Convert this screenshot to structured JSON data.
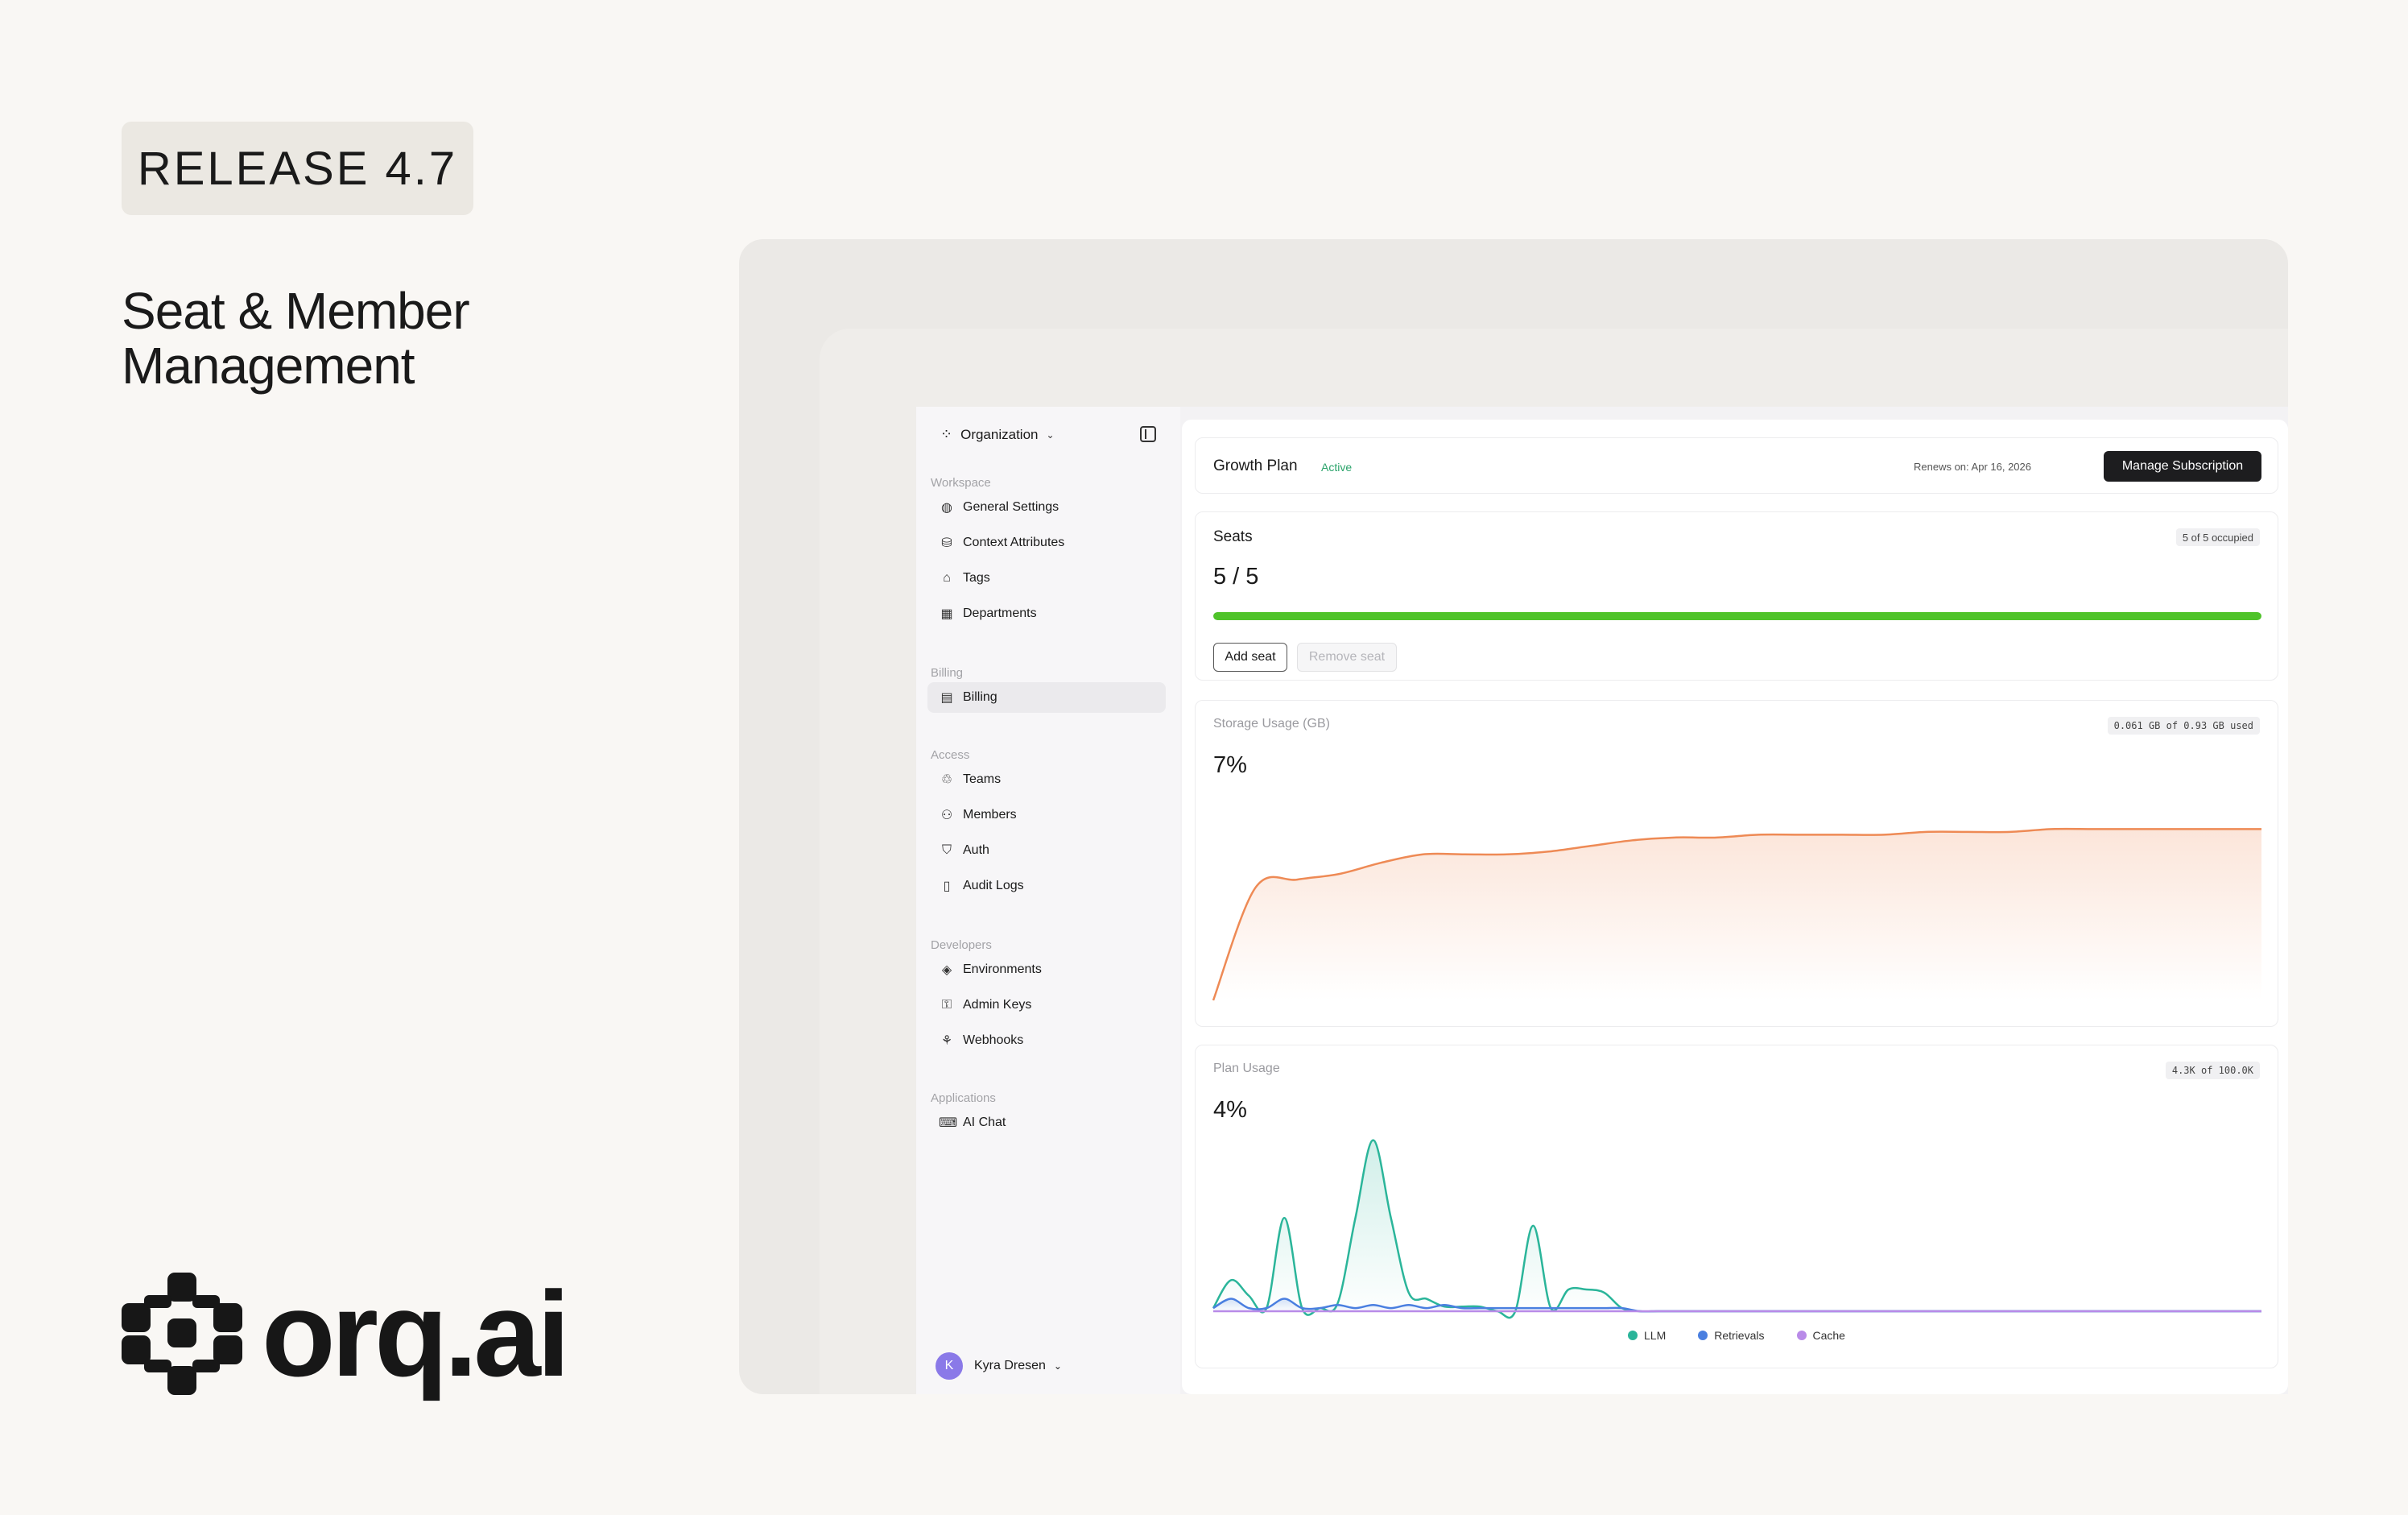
{
  "hero": {
    "release": "RELEASE 4.7",
    "headline_line1": "Seat & Member",
    "headline_line2": "Management",
    "brand": "orq.ai"
  },
  "sidebar": {
    "org_label": "Organization",
    "sections": {
      "workspace": "Workspace",
      "billing": "Billing",
      "access": "Access",
      "developers": "Developers",
      "applications": "Applications"
    },
    "items": {
      "general_settings": "General Settings",
      "context_attributes": "Context Attributes",
      "tags": "Tags",
      "departments": "Departments",
      "billing": "Billing",
      "teams": "Teams",
      "members": "Members",
      "auth": "Auth",
      "audit_logs": "Audit Logs",
      "environments": "Environments",
      "admin_keys": "Admin Keys",
      "webhooks": "Webhooks",
      "ai_chat": "AI Chat"
    },
    "active_item": "billing",
    "user": {
      "initial": "K",
      "name": "Kyra Dresen"
    }
  },
  "plan": {
    "name": "Growth Plan",
    "status": "Active",
    "renews": "Renews on: Apr 16, 2026",
    "manage_label": "Manage Subscription"
  },
  "seats": {
    "title": "Seats",
    "occupied_badge": "5 of 5 occupied",
    "value": "5 / 5",
    "fill_fraction": 1.0,
    "add_label": "Add seat",
    "remove_label": "Remove seat"
  },
  "storage": {
    "title": "Storage Usage (GB)",
    "badge": "0.061 GB of 0.93 GB used",
    "percent": "7%"
  },
  "plan_usage": {
    "title": "Plan Usage",
    "badge": "4.3K of 100.0K",
    "percent": "4%"
  },
  "colors": {
    "accent_green": "#4fc32a",
    "storage_line": "#ee8a55",
    "llm": "#2bb59a",
    "retrievals": "#4a7fe0",
    "cache": "#b98be8"
  },
  "chart_data": [
    {
      "type": "area",
      "title": "Storage Usage (GB)",
      "x": [
        0,
        1,
        2,
        3,
        4,
        5,
        6,
        7,
        8,
        9,
        10,
        11,
        12,
        13,
        14,
        15,
        16,
        17,
        18,
        19,
        20,
        21,
        22,
        23,
        24,
        25
      ],
      "series": [
        {
          "values": [
            0.0,
            0.04,
            0.043,
            0.045,
            0.049,
            0.052,
            0.052,
            0.052,
            0.053,
            0.055,
            0.057,
            0.058,
            0.058,
            0.059,
            0.059,
            0.059,
            0.059,
            0.06,
            0.06,
            0.06,
            0.061,
            0.061,
            0.061,
            0.061,
            0.061,
            0.061
          ]
        }
      ],
      "ylim": [
        0,
        0.07
      ]
    },
    {
      "type": "area",
      "title": "Plan Usage",
      "x": [
        0,
        1,
        2,
        3,
        4,
        5,
        6,
        7,
        8,
        9,
        10,
        11,
        12,
        13,
        14,
        15,
        16,
        17,
        18,
        19,
        20,
        21,
        22,
        23,
        24,
        25,
        26,
        27,
        28,
        29,
        30,
        31,
        32,
        33,
        34,
        35,
        36,
        37,
        38,
        39,
        40,
        41,
        42,
        43,
        44,
        45,
        46,
        47,
        48,
        49,
        50,
        51,
        52,
        53,
        54,
        55,
        56,
        57,
        58,
        59
      ],
      "series": [
        {
          "name": "LLM",
          "values": [
            2,
            20,
            10,
            2,
            60,
            2,
            2,
            5,
            60,
            110,
            60,
            12,
            8,
            3,
            3,
            3,
            0,
            0,
            55,
            2,
            14,
            14,
            12,
            2,
            0,
            0,
            0,
            0,
            0,
            0,
            0,
            0,
            0,
            0,
            0,
            0,
            0,
            0,
            0,
            0,
            0,
            0,
            0,
            0,
            0,
            0,
            0,
            0,
            0,
            0,
            0,
            0,
            0,
            0,
            0,
            0,
            0,
            0,
            0,
            0
          ]
        },
        {
          "name": "Retrievals",
          "values": [
            2,
            8,
            2,
            2,
            8,
            2,
            2,
            4,
            2,
            4,
            2,
            4,
            2,
            4,
            2,
            2,
            2,
            2,
            2,
            2,
            2,
            2,
            2,
            2,
            0,
            0,
            0,
            0,
            0,
            0,
            0,
            0,
            0,
            0,
            0,
            0,
            0,
            0,
            0,
            0,
            0,
            0,
            0,
            0,
            0,
            0,
            0,
            0,
            0,
            0,
            0,
            0,
            0,
            0,
            0,
            0,
            0,
            0,
            0,
            0
          ]
        },
        {
          "name": "Cache",
          "values": [
            0,
            0,
            0,
            0,
            0,
            0,
            0,
            0,
            0,
            0,
            0,
            0,
            0,
            0,
            0,
            0,
            0,
            0,
            0,
            0,
            0,
            0,
            0,
            0,
            0,
            0,
            0,
            0,
            0,
            0,
            0,
            0,
            0,
            0,
            0,
            0,
            0,
            0,
            0,
            0,
            0,
            0,
            0,
            0,
            0,
            0,
            0,
            0,
            0,
            0,
            0,
            0,
            0,
            0,
            0,
            0,
            0,
            0,
            0,
            0
          ]
        }
      ],
      "ylim": [
        0,
        115
      ]
    }
  ]
}
